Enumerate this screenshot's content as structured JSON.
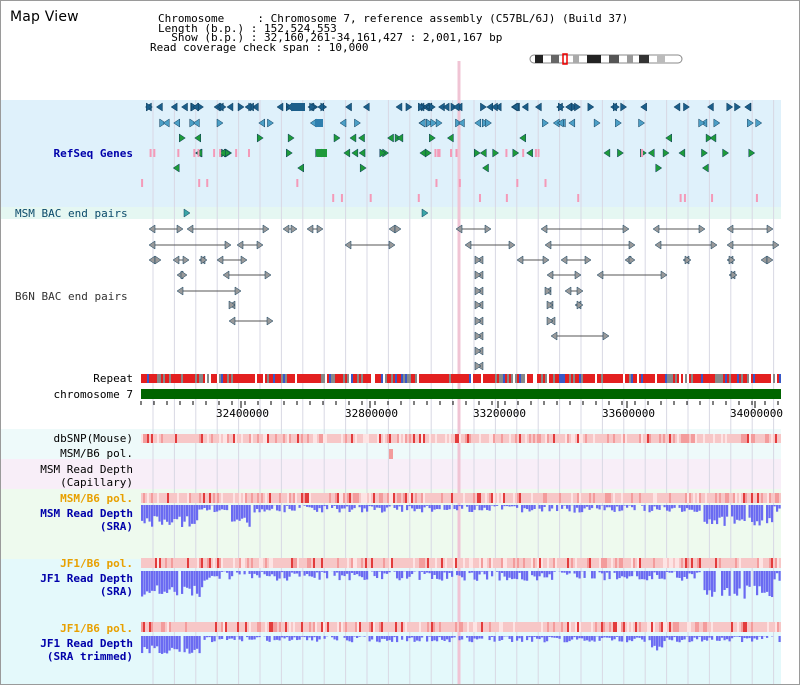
{
  "header": {
    "title": "Map View",
    "chromosome_line": "Chromosome     : Chromosome 7, reference assembly (C57BL/6J) (Build 37)",
    "length_line": "Length (b.p.) : 152,524,553",
    "show_line": "  Show (b.p.) : 32,160,261-34,161,427 : 2,001,167 bp",
    "coverage_line": "Read coverage check span : 10,000"
  },
  "tracks": {
    "refseq": "RefSeq Genes",
    "msm_bac": "MSM BAC end pairs",
    "b6n_bac": "B6N BAC end pairs",
    "repeat": "Repeat",
    "chromosome": "chromosome 7",
    "dbsnp": "dbSNP(Mouse)",
    "msm_b6_pol_1": "MSM/B6 pol.",
    "msm_read_depth_cap": "MSM Read Depth\n(Capillary)",
    "msm_b6_pol_2": "MSM/B6 pol.",
    "msm_read_depth_sra": "MSM Read Depth\n(SRA)",
    "jf1_b6_pol_1": "JF1/B6 pol.",
    "jf1_read_depth_sra": "JF1 Read Depth\n(SRA)",
    "jf1_b6_pol_2": "JF1/B6 pol.",
    "jf1_read_depth_trimmed": "JF1 Read Depth\n(SRA trimmed)"
  },
  "axis": {
    "ticks": [
      "32400000",
      "32800000",
      "33200000",
      "33600000",
      "34000000"
    ]
  },
  "colors": {
    "refseq_bg": "#dff1fb",
    "msm_bac_bg": "#e5f7f2",
    "gene_dark": "#1b5e8a",
    "gene_green": "#1e9a3a",
    "repeat_red": "#e32020",
    "chromosome_green": "#006400",
    "depth_blue": "#6a6af2",
    "pol_pink": "#f7c7c7"
  }
}
